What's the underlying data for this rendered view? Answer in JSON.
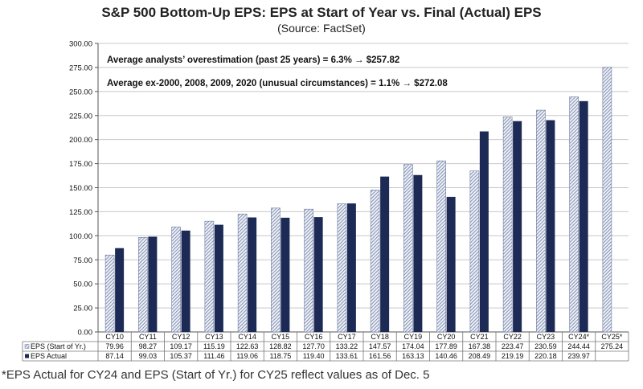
{
  "header": {
    "title": "S&P 500 Bottom-Up EPS: EPS at Start of Year vs. Final (Actual) EPS",
    "subtitle": "(Source: FactSet)"
  },
  "annotations": [
    "Average analysts’ overestimation (past 25 years) = 6.3% → $257.82",
    "Average ex-2000, 2008, 2009, 2020 (unusual circumstances) = 1.1% → $272.08"
  ],
  "footnote": "*EPS Actual for CY24 and EPS (Start of Yr.) for CY25 reflect values as of Dec. 5",
  "colors": {
    "start": "#6a7ba3",
    "actual": "#1c2a55",
    "grid": "#c8c8c8"
  },
  "chart_data": {
    "type": "bar",
    "ylim": [
      0,
      300
    ],
    "yticks": [
      "0.00",
      "25.00",
      "50.00",
      "75.00",
      "100.00",
      "125.00",
      "150.00",
      "175.00",
      "200.00",
      "225.00",
      "250.00",
      "275.00",
      "300.00"
    ],
    "categories": [
      "CY10",
      "CY11",
      "CY12",
      "CY13",
      "CY14",
      "CY15",
      "CY16",
      "CY17",
      "CY18",
      "CY19",
      "CY20",
      "CY21",
      "CY22",
      "CY23",
      "CY24*",
      "CY25*"
    ],
    "series": [
      {
        "name": "EPS (Start of Yr.)",
        "values": [
          79.96,
          98.27,
          109.17,
          115.19,
          122.63,
          128.82,
          127.7,
          133.22,
          147.57,
          174.04,
          177.89,
          167.38,
          223.47,
          230.59,
          244.44,
          275.24
        ],
        "labels": [
          "79.96",
          "98.27",
          "109.17",
          "115.19",
          "122.63",
          "128.82",
          "127.70",
          "133.22",
          "147.57",
          "174.04",
          "177.89",
          "167.38",
          "223.47",
          "230.59",
          "244.44",
          "275.24"
        ]
      },
      {
        "name": "EPS Actual",
        "values": [
          87.14,
          99.03,
          105.37,
          111.46,
          119.06,
          118.75,
          119.4,
          133.61,
          161.56,
          163.13,
          140.46,
          208.49,
          219.19,
          220.18,
          239.97,
          null
        ],
        "labels": [
          "87.14",
          "99.03",
          "105.37",
          "111.46",
          "119.06",
          "118.75",
          "119.40",
          "133.61",
          "161.56",
          "163.13",
          "140.46",
          "208.49",
          "219.19",
          "220.18",
          "239.97",
          ""
        ]
      }
    ]
  }
}
